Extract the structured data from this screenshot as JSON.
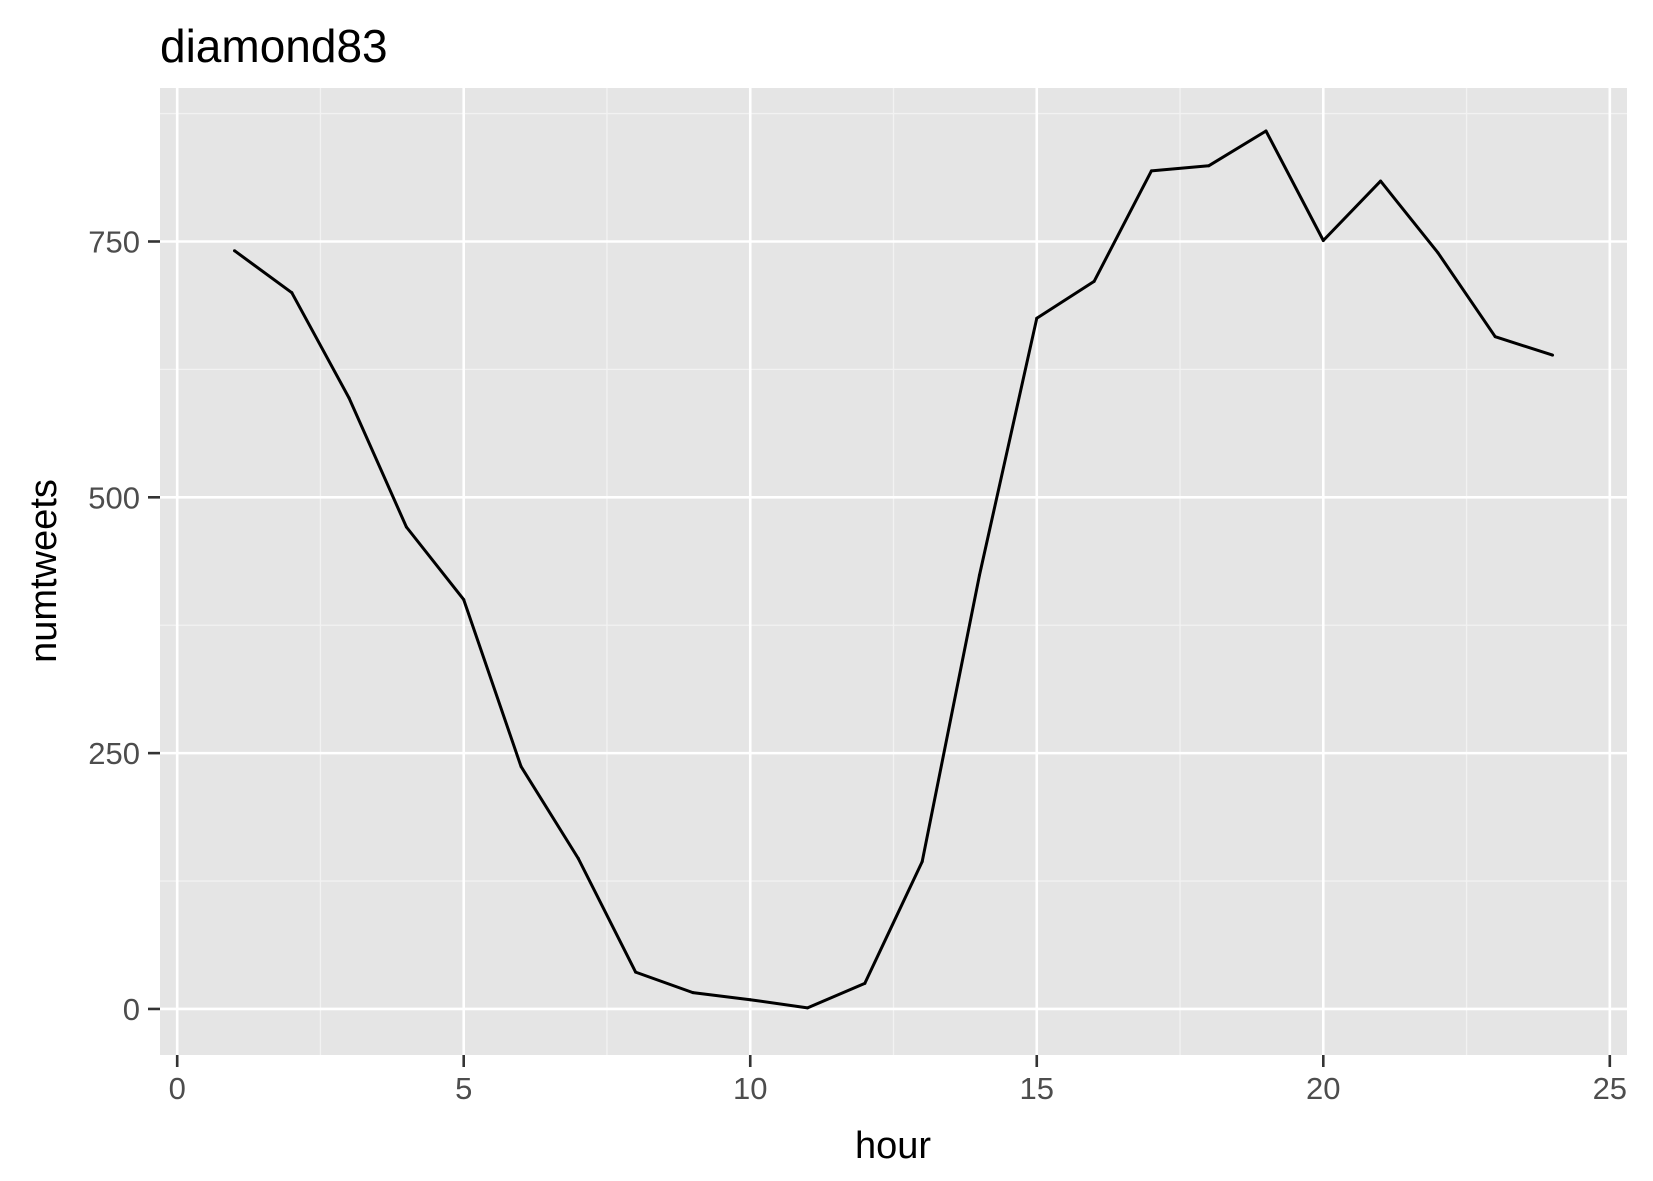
{
  "chart_data": {
    "type": "line",
    "title": "diamond83",
    "xlabel": "hour",
    "ylabel": "numtweets",
    "xlim": [
      -0.3,
      25.3
    ],
    "ylim": [
      -45,
      900
    ],
    "x_ticks": [
      0,
      5,
      10,
      15,
      20,
      25
    ],
    "x_tick_labels": [
      "0",
      "5",
      "10",
      "15",
      "20",
      "25"
    ],
    "y_ticks": [
      0,
      250,
      500,
      750
    ],
    "y_tick_labels": [
      "0",
      "250",
      "500",
      "750"
    ],
    "grid": true,
    "legend": "none",
    "colors": {
      "panel_background": "#e5e5e5",
      "grid_major": "#ffffff",
      "grid_minor": "#f2f2f2",
      "line": "#000000",
      "tick": "#333333"
    },
    "series": [
      {
        "x": [
          1,
          2,
          3,
          4,
          5,
          6,
          7,
          8,
          9,
          10,
          11,
          12,
          13,
          14,
          15,
          16,
          17,
          18,
          19,
          20,
          21,
          22,
          23,
          24
        ],
        "y": [
          741,
          700,
          597,
          471,
          400,
          237,
          147,
          36,
          16,
          9,
          1,
          25,
          144,
          424,
          675,
          711,
          819,
          824,
          858,
          751,
          809,
          739,
          657,
          639
        ]
      }
    ]
  }
}
